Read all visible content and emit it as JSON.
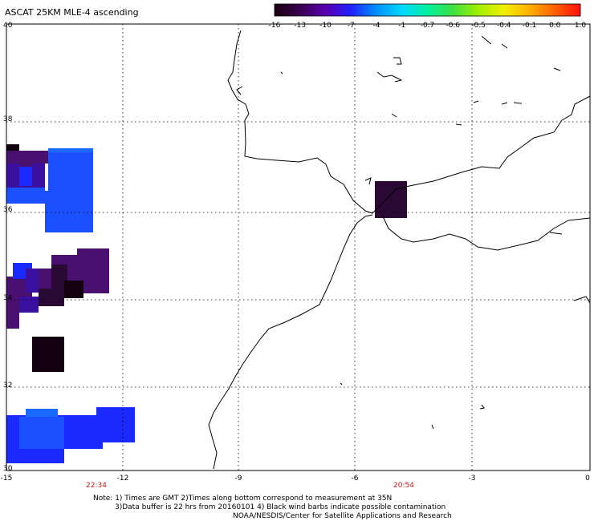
{
  "title": "ASCAT 25KM MLE-4 ascending",
  "colorbar": {
    "labels": [
      "-16",
      "-13",
      "-10",
      "-7",
      "-4",
      "-1",
      "-0.7",
      "-0.6",
      "-0.5",
      "-0.4",
      "-0.1",
      "0.0",
      "1.0"
    ],
    "colors": [
      "#1a0010",
      "#3a0050",
      "#5a00b0",
      "#2020ff",
      "#0090ff",
      "#00d8ff",
      "#00f0a0",
      "#40e040",
      "#a0f000",
      "#f0f000",
      "#ffb000",
      "#ff6000",
      "#ff1010"
    ]
  },
  "axes": {
    "lat_labels": [
      "40",
      "38",
      "36",
      "34",
      "32",
      "30"
    ],
    "lon_labels": [
      "-15",
      "-12",
      "-9",
      "-6",
      "-3",
      "0"
    ],
    "lat_range": [
      30,
      40
    ],
    "lon_range": [
      -15,
      0
    ]
  },
  "times": [
    "22:34",
    "20:54"
  ],
  "notes": {
    "line1": "Note: 1) Times are GMT 2)Times along bottom correspond to measurement at 35N",
    "line2": "3)Data buffer is 22 hrs from 20160101 4) Black wind barbs indicate possible contamination",
    "line3": "NOAA/NESDIS/Center for Satellite Applications and Research"
  },
  "map_colors": {
    "dark_purple": "#2a0a35",
    "purple": "#4a1070",
    "violet": "#3a10a0",
    "blue": "#1a2aff",
    "mid_blue": "#1a50ff",
    "light_blue": "#1a6aff",
    "black_purple": "#120010"
  }
}
